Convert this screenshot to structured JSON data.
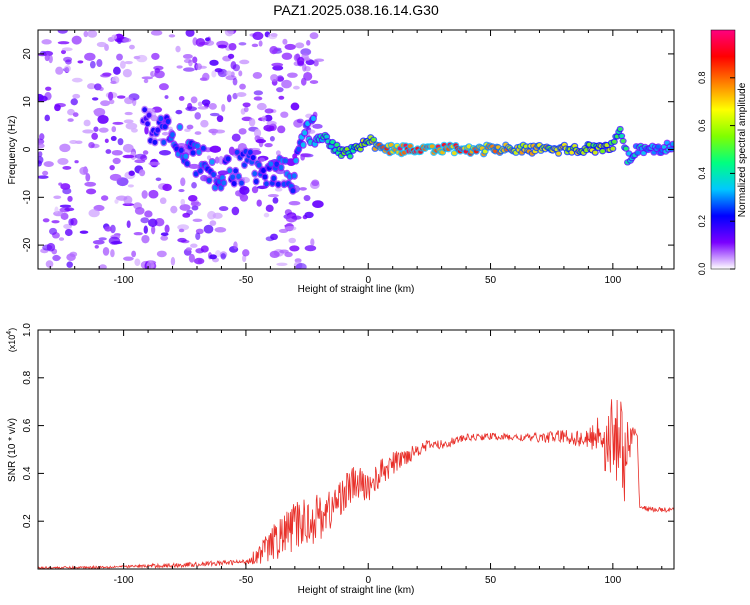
{
  "title": "PAZ1.2025.038.16.14.G30",
  "chart_data": [
    {
      "type": "heatmap",
      "xlabel": "Height of straight line (km)",
      "ylabel": "Frequency (Hz)",
      "xlim": [
        -135,
        125
      ],
      "ylim": [
        -25,
        25
      ],
      "x_ticks": [
        -100,
        -50,
        0,
        50,
        100
      ],
      "x_tick_labels": [
        "-100",
        "-50",
        "0",
        "50",
        "100"
      ],
      "y_ticks": [
        -20,
        -10,
        0,
        10,
        20
      ],
      "y_tick_labels": [
        "-20",
        "-10",
        "0",
        "10",
        "20"
      ],
      "colorbar": {
        "label": "Normalized spectral amplitude",
        "range": [
          0,
          1
        ],
        "ticks": [
          0.0,
          0.2,
          0.4,
          0.6,
          0.8
        ],
        "tick_labels": [
          "0.0",
          "0.2",
          "0.4",
          "0.6",
          "0.8"
        ],
        "colors": [
          "#ffffff",
          "#7a00ff",
          "#0000ff",
          "#00c8ff",
          "#00ff80",
          "#80ff00",
          "#ffff00",
          "#ff8000",
          "#ff0000",
          "#ff0080"
        ]
      },
      "ridge": {
        "x": [
          -90,
          -80,
          -70,
          -60,
          -50,
          -40,
          -30,
          -25,
          -20,
          -15,
          -10,
          -5,
          0,
          5,
          10,
          20,
          40,
          60,
          80,
          100,
          103,
          106,
          110,
          125
        ],
        "y": [
          5,
          3.5,
          -2,
          -6,
          -3,
          -4,
          -6,
          5,
          3,
          1,
          -1,
          0,
          2,
          0.5,
          0,
          0,
          0,
          0,
          0,
          0.5,
          4,
          -2,
          0,
          0.5
        ],
        "amplitude": [
          0.2,
          0.3,
          0.3,
          0.3,
          0.25,
          0.3,
          0.3,
          0.35,
          0.4,
          0.5,
          0.55,
          0.6,
          0.65,
          0.8,
          0.9,
          0.95,
          0.9,
          0.75,
          0.7,
          0.6,
          0.5,
          0.45,
          0.4,
          0.35
        ]
      }
    },
    {
      "type": "line",
      "xlabel": "Height of straight line (km)",
      "ylabel": "SNR (10 * v/v)",
      "y_multiplier": "(x10",
      "y_multiplier_exp": "4",
      "xlim": [
        -135,
        125
      ],
      "ylim": [
        0,
        1.0
      ],
      "x_ticks": [
        -100,
        -50,
        0,
        50,
        100
      ],
      "x_tick_labels": [
        "-100",
        "-50",
        "0",
        "50",
        "100"
      ],
      "y_ticks": [
        0.2,
        0.4,
        0.6,
        0.8,
        1.0
      ],
      "y_tick_labels": [
        "0.2",
        "0.4",
        "0.6",
        "0.8",
        "1.0"
      ],
      "series": [
        {
          "color": "#e8302a",
          "x": [
            -135,
            -120,
            -100,
            -80,
            -60,
            -50,
            -45,
            -40,
            -35,
            -30,
            -25,
            -20,
            -15,
            -10,
            -5,
            0,
            5,
            10,
            15,
            20,
            25,
            30,
            40,
            50,
            60,
            70,
            80,
            90,
            95,
            98,
            100,
            102,
            104,
            106,
            108,
            110,
            111,
            115,
            125
          ],
          "y": [
            0.005,
            0.006,
            0.01,
            0.015,
            0.025,
            0.03,
            0.06,
            0.1,
            0.14,
            0.18,
            0.2,
            0.22,
            0.25,
            0.32,
            0.36,
            0.34,
            0.4,
            0.44,
            0.47,
            0.5,
            0.52,
            0.52,
            0.55,
            0.555,
            0.55,
            0.55,
            0.555,
            0.54,
            0.58,
            0.5,
            0.55,
            0.62,
            0.45,
            0.48,
            0.55,
            0.545,
            0.26,
            0.25,
            0.245
          ],
          "noise_amplitude": [
            0.005,
            0.005,
            0.005,
            0.01,
            0.01,
            0.01,
            0.04,
            0.07,
            0.09,
            0.1,
            0.11,
            0.1,
            0.09,
            0.08,
            0.08,
            0.06,
            0.06,
            0.05,
            0.04,
            0.03,
            0.02,
            0.02,
            0.015,
            0.015,
            0.015,
            0.02,
            0.03,
            0.04,
            0.1,
            0.15,
            0.2,
            0.25,
            0.2,
            0.15,
            0.08,
            0.02,
            0.01,
            0.01,
            0.01
          ]
        }
      ]
    }
  ]
}
